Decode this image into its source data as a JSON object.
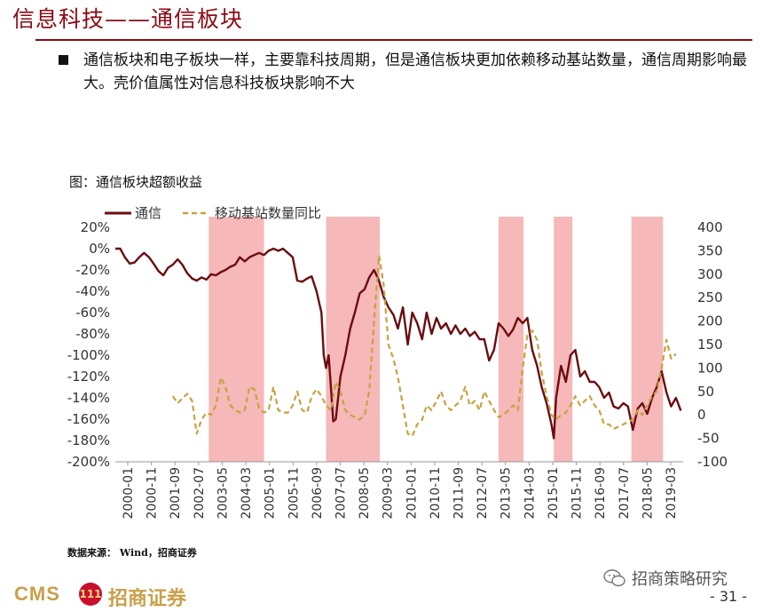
{
  "page": {
    "title": "信息科技——通信板块",
    "bullet": "通信板块和电子板块一样，主要靠科技周期，但是通信板块更加依赖移动基站数量，通信周期影响最大。壳价值属性对信息科技板块影响不大",
    "figure_caption": "图：通信板块超额收益",
    "source": "数据来源： Wind，招商证券",
    "footer_logo_en": "CMS",
    "footer_logo_cn": "招商证券",
    "wechat_label": "招商策略研究",
    "page_number": "- 31 -",
    "logo_mark_text": "111"
  },
  "colors": {
    "title": "#8b0a14",
    "series_comm": "#6b0d10",
    "series_bs": "#c6a340",
    "shade": "#f6b8b8"
  },
  "chart_data": {
    "type": "line",
    "legend": {
      "position": "top-left",
      "items": [
        "通信",
        "移动基站数量同比"
      ]
    },
    "y_left": {
      "ticks": [
        "20%",
        "0%",
        "-20%",
        "-40%",
        "-60%",
        "-80%",
        "-100%",
        "-120%",
        "-140%",
        "-160%",
        "-180%",
        "-200%"
      ],
      "range": [
        -200,
        20
      ],
      "unit": "%"
    },
    "y_right": {
      "ticks": [
        "400",
        "350",
        "300",
        "250",
        "200",
        "150",
        "100",
        "50",
        "0",
        "-50",
        "-100"
      ],
      "range": [
        -100,
        400
      ]
    },
    "x_ticks": [
      "2000-01",
      "2000-11",
      "2001-09",
      "2002-07",
      "2003-05",
      "2004-03",
      "2005-01",
      "2005-11",
      "2006-09",
      "2007-07",
      "2008-05",
      "2009-03",
      "2010-01",
      "2010-11",
      "2011-09",
      "2012-07",
      "2013-05",
      "2014-03",
      "2015-01",
      "2015-11",
      "2016-09",
      "2017-07",
      "2018-05",
      "2019-03"
    ],
    "x_range": [
      2000.0,
      2019.75
    ],
    "shaded_periods": [
      {
        "start": 2003.25,
        "end": 2005.17
      },
      {
        "start": 2007.33,
        "end": 2009.2
      },
      {
        "start": 2013.33,
        "end": 2014.2
      },
      {
        "start": 2015.25,
        "end": 2015.9
      },
      {
        "start": 2017.95,
        "end": 2019.05
      }
    ],
    "series": [
      {
        "name": "通信",
        "axis": "left",
        "points": [
          [
            2000.0,
            0
          ],
          [
            2000.17,
            0
          ],
          [
            2000.33,
            -8
          ],
          [
            2000.5,
            -14
          ],
          [
            2000.67,
            -13
          ],
          [
            2000.83,
            -8
          ],
          [
            2001.0,
            -4
          ],
          [
            2001.17,
            -8
          ],
          [
            2001.33,
            -14
          ],
          [
            2001.5,
            -21
          ],
          [
            2001.67,
            -25
          ],
          [
            2001.83,
            -18
          ],
          [
            2002.0,
            -15
          ],
          [
            2002.17,
            -10
          ],
          [
            2002.33,
            -15
          ],
          [
            2002.5,
            -23
          ],
          [
            2002.67,
            -28
          ],
          [
            2002.83,
            -30
          ],
          [
            2003.0,
            -27
          ],
          [
            2003.17,
            -29
          ],
          [
            2003.33,
            -24
          ],
          [
            2003.5,
            -25
          ],
          [
            2003.67,
            -22
          ],
          [
            2003.83,
            -20
          ],
          [
            2004.0,
            -17
          ],
          [
            2004.17,
            -15
          ],
          [
            2004.33,
            -8
          ],
          [
            2004.5,
            -12
          ],
          [
            2004.67,
            -8
          ],
          [
            2004.83,
            -6
          ],
          [
            2005.0,
            -4
          ],
          [
            2005.17,
            -6
          ],
          [
            2005.33,
            -2
          ],
          [
            2005.5,
            0
          ],
          [
            2005.67,
            -2
          ],
          [
            2005.83,
            0
          ],
          [
            2006.0,
            -4
          ],
          [
            2006.17,
            -8
          ],
          [
            2006.33,
            -30
          ],
          [
            2006.5,
            -31
          ],
          [
            2006.67,
            -28
          ],
          [
            2006.83,
            -26
          ],
          [
            2007.0,
            -40
          ],
          [
            2007.17,
            -60
          ],
          [
            2007.25,
            -100
          ],
          [
            2007.33,
            -112
          ],
          [
            2007.42,
            -100
          ],
          [
            2007.5,
            -130
          ],
          [
            2007.58,
            -162
          ],
          [
            2007.67,
            -160
          ],
          [
            2007.75,
            -140
          ],
          [
            2007.83,
            -120
          ],
          [
            2008.0,
            -100
          ],
          [
            2008.17,
            -75
          ],
          [
            2008.33,
            -60
          ],
          [
            2008.5,
            -42
          ],
          [
            2008.67,
            -38
          ],
          [
            2008.83,
            -27
          ],
          [
            2009.0,
            -20
          ],
          [
            2009.17,
            -30
          ],
          [
            2009.33,
            -45
          ],
          [
            2009.5,
            -55
          ],
          [
            2009.67,
            -62
          ],
          [
            2009.83,
            -75
          ],
          [
            2010.0,
            -55
          ],
          [
            2010.17,
            -90
          ],
          [
            2010.33,
            -60
          ],
          [
            2010.5,
            -70
          ],
          [
            2010.67,
            -85
          ],
          [
            2010.83,
            -60
          ],
          [
            2011.0,
            -80
          ],
          [
            2011.17,
            -65
          ],
          [
            2011.33,
            -75
          ],
          [
            2011.5,
            -70
          ],
          [
            2011.67,
            -80
          ],
          [
            2011.83,
            -72
          ],
          [
            2012.0,
            -80
          ],
          [
            2012.17,
            -75
          ],
          [
            2012.33,
            -82
          ],
          [
            2012.5,
            -78
          ],
          [
            2012.67,
            -85
          ],
          [
            2012.83,
            -85
          ],
          [
            2013.0,
            -105
          ],
          [
            2013.17,
            -95
          ],
          [
            2013.33,
            -70
          ],
          [
            2013.5,
            -75
          ],
          [
            2013.67,
            -82
          ],
          [
            2013.83,
            -76
          ],
          [
            2014.0,
            -65
          ],
          [
            2014.17,
            -70
          ],
          [
            2014.33,
            -65
          ],
          [
            2014.5,
            -95
          ],
          [
            2014.67,
            -110
          ],
          [
            2014.83,
            -130
          ],
          [
            2015.0,
            -145
          ],
          [
            2015.17,
            -165
          ],
          [
            2015.25,
            -178
          ],
          [
            2015.33,
            -140
          ],
          [
            2015.5,
            -110
          ],
          [
            2015.67,
            -125
          ],
          [
            2015.83,
            -100
          ],
          [
            2016.0,
            -95
          ],
          [
            2016.17,
            -120
          ],
          [
            2016.33,
            -115
          ],
          [
            2016.5,
            -125
          ],
          [
            2016.67,
            -125
          ],
          [
            2016.83,
            -130
          ],
          [
            2017.0,
            -140
          ],
          [
            2017.17,
            -135
          ],
          [
            2017.33,
            -148
          ],
          [
            2017.5,
            -150
          ],
          [
            2017.67,
            -145
          ],
          [
            2017.83,
            -148
          ],
          [
            2018.0,
            -170
          ],
          [
            2018.17,
            -150
          ],
          [
            2018.33,
            -145
          ],
          [
            2018.5,
            -155
          ],
          [
            2018.67,
            -140
          ],
          [
            2018.83,
            -130
          ],
          [
            2019.0,
            -115
          ],
          [
            2019.17,
            -135
          ],
          [
            2019.33,
            -148
          ],
          [
            2019.5,
            -140
          ],
          [
            2019.67,
            -152
          ]
        ]
      },
      {
        "name": "移动基站数量同比",
        "axis": "right",
        "dashed": true,
        "points": [
          [
            2002.0,
            40
          ],
          [
            2002.17,
            25
          ],
          [
            2002.33,
            35
          ],
          [
            2002.5,
            45
          ],
          [
            2002.67,
            30
          ],
          [
            2002.83,
            -40
          ],
          [
            2003.0,
            -10
          ],
          [
            2003.17,
            5
          ],
          [
            2003.33,
            0
          ],
          [
            2003.5,
            20
          ],
          [
            2003.67,
            80
          ],
          [
            2003.83,
            60
          ],
          [
            2004.0,
            20
          ],
          [
            2004.17,
            10
          ],
          [
            2004.33,
            5
          ],
          [
            2004.5,
            10
          ],
          [
            2004.67,
            60
          ],
          [
            2004.83,
            55
          ],
          [
            2005.0,
            15
          ],
          [
            2005.17,
            5
          ],
          [
            2005.33,
            10
          ],
          [
            2005.5,
            60
          ],
          [
            2005.67,
            10
          ],
          [
            2005.83,
            5
          ],
          [
            2006.0,
            5
          ],
          [
            2006.17,
            20
          ],
          [
            2006.33,
            50
          ],
          [
            2006.5,
            10
          ],
          [
            2006.67,
            5
          ],
          [
            2006.83,
            40
          ],
          [
            2007.0,
            55
          ],
          [
            2007.17,
            40
          ],
          [
            2007.33,
            20
          ],
          [
            2007.5,
            10
          ],
          [
            2007.67,
            70
          ],
          [
            2007.83,
            50
          ],
          [
            2008.0,
            10
          ],
          [
            2008.17,
            0
          ],
          [
            2008.33,
            -5
          ],
          [
            2008.5,
            -10
          ],
          [
            2008.67,
            0
          ],
          [
            2008.83,
            50
          ],
          [
            2009.0,
            200
          ],
          [
            2009.17,
            340
          ],
          [
            2009.33,
            280
          ],
          [
            2009.5,
            150
          ],
          [
            2009.67,
            120
          ],
          [
            2009.83,
            80
          ],
          [
            2010.0,
            20
          ],
          [
            2010.17,
            -40
          ],
          [
            2010.33,
            -45
          ],
          [
            2010.5,
            -20
          ],
          [
            2010.67,
            -10
          ],
          [
            2010.83,
            20
          ],
          [
            2011.0,
            10
          ],
          [
            2011.17,
            30
          ],
          [
            2011.33,
            50
          ],
          [
            2011.5,
            20
          ],
          [
            2011.67,
            10
          ],
          [
            2011.83,
            20
          ],
          [
            2012.0,
            30
          ],
          [
            2012.17,
            60
          ],
          [
            2012.33,
            20
          ],
          [
            2012.5,
            30
          ],
          [
            2012.67,
            10
          ],
          [
            2012.83,
            50
          ],
          [
            2013.0,
            30
          ],
          [
            2013.17,
            10
          ],
          [
            2013.33,
            -5
          ],
          [
            2013.5,
            0
          ],
          [
            2013.67,
            10
          ],
          [
            2013.83,
            20
          ],
          [
            2014.0,
            10
          ],
          [
            2014.17,
            100
          ],
          [
            2014.33,
            170
          ],
          [
            2014.5,
            180
          ],
          [
            2014.67,
            160
          ],
          [
            2014.83,
            90
          ],
          [
            2015.0,
            40
          ],
          [
            2015.17,
            0
          ],
          [
            2015.33,
            -10
          ],
          [
            2015.5,
            0
          ],
          [
            2015.67,
            5
          ],
          [
            2015.83,
            20
          ],
          [
            2016.0,
            40
          ],
          [
            2016.17,
            20
          ],
          [
            2016.33,
            30
          ],
          [
            2016.5,
            40
          ],
          [
            2016.67,
            20
          ],
          [
            2016.83,
            10
          ],
          [
            2017.0,
            -20
          ],
          [
            2017.17,
            -20
          ],
          [
            2017.33,
            -30
          ],
          [
            2017.5,
            -25
          ],
          [
            2017.67,
            -20
          ],
          [
            2017.83,
            -15
          ],
          [
            2018.0,
            -10
          ],
          [
            2018.17,
            10
          ],
          [
            2018.33,
            0
          ],
          [
            2018.5,
            20
          ],
          [
            2018.67,
            40
          ],
          [
            2018.83,
            50
          ],
          [
            2019.0,
            100
          ],
          [
            2019.17,
            160
          ],
          [
            2019.33,
            120
          ],
          [
            2019.5,
            130
          ]
        ]
      }
    ]
  }
}
